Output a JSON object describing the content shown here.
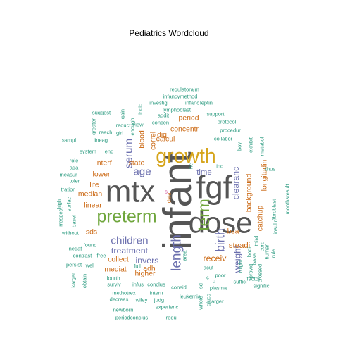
{
  "chart_data": {
    "type": "wordcloud",
    "title": "Pediatrics  Wordcloud",
    "colors": {
      "dark": "#555555",
      "gold": "#d6a51c",
      "green": "#6fa63c",
      "purple": "#6b6fae",
      "orange": "#cc6b17",
      "teal": "#2a9a7f",
      "pink": "#c9358a"
    },
    "words": [
      {
        "text": "infant",
        "weight": 60,
        "color": "dark",
        "rotate": true
      },
      {
        "text": "fgf",
        "weight": 48,
        "color": "dark",
        "rotate": false
      },
      {
        "text": "mtx",
        "weight": 46,
        "color": "dark",
        "rotate": false
      },
      {
        "text": "dose",
        "weight": 44,
        "color": "dark",
        "rotate": false
      },
      {
        "text": "growth",
        "weight": 30,
        "color": "gold",
        "rotate": false
      },
      {
        "text": "preterm",
        "weight": 26,
        "color": "green",
        "rotate": false
      },
      {
        "text": "term",
        "weight": 24,
        "color": "green",
        "rotate": true
      },
      {
        "text": "length",
        "weight": 20,
        "color": "purple",
        "rotate": true
      },
      {
        "text": "birth",
        "weight": 18,
        "color": "purple",
        "rotate": true
      },
      {
        "text": "children",
        "weight": 16,
        "color": "purple",
        "rotate": false
      },
      {
        "text": "serum",
        "weight": 16,
        "color": "purple",
        "rotate": true
      },
      {
        "text": "age",
        "weight": 16,
        "color": "purple",
        "rotate": false
      },
      {
        "text": "weight",
        "weight": 14,
        "color": "purple",
        "rotate": true
      },
      {
        "text": "treatment",
        "weight": 13,
        "color": "purple",
        "rotate": false
      },
      {
        "text": "invers",
        "weight": 13,
        "color": "purple",
        "rotate": false
      },
      {
        "text": "clearanc",
        "weight": 13,
        "color": "purple",
        "rotate": true
      },
      {
        "text": "time",
        "weight": 12,
        "color": "purple",
        "rotate": false
      },
      {
        "text": "receiv",
        "weight": 13,
        "color": "orange",
        "rotate": false
      },
      {
        "text": "steadi",
        "weight": 12,
        "color": "orange",
        "rotate": false
      },
      {
        "text": "longitudin",
        "weight": 11,
        "color": "orange",
        "rotate": true
      },
      {
        "text": "background",
        "weight": 11,
        "color": "orange",
        "rotate": true
      },
      {
        "text": "catchup",
        "weight": 11,
        "color": "orange",
        "rotate": true
      },
      {
        "text": "bsa",
        "weight": 11,
        "color": "orange",
        "rotate": false
      },
      {
        "text": "mediat",
        "weight": 11,
        "color": "orange",
        "rotate": false
      },
      {
        "text": "higher",
        "weight": 11,
        "color": "orange",
        "rotate": false
      },
      {
        "text": "collect",
        "weight": 11,
        "color": "orange",
        "rotate": false
      },
      {
        "text": "median",
        "weight": 11,
        "color": "orange",
        "rotate": false
      },
      {
        "text": "linear",
        "weight": 11,
        "color": "orange",
        "rotate": false
      },
      {
        "text": "lower",
        "weight": 11,
        "color": "orange",
        "rotate": false
      },
      {
        "text": "interf",
        "weight": 11,
        "color": "orange",
        "rotate": false
      },
      {
        "text": "state",
        "weight": 11,
        "color": "orange",
        "rotate": false
      },
      {
        "text": "life",
        "weight": 11,
        "color": "orange",
        "rotate": false
      },
      {
        "text": "sds",
        "weight": 11,
        "color": "orange",
        "rotate": false
      },
      {
        "text": "blood",
        "weight": 11,
        "color": "orange",
        "rotate": true
      },
      {
        "text": "correl",
        "weight": 11,
        "color": "orange",
        "rotate": true
      },
      {
        "text": "dig",
        "weight": 11,
        "color": "orange",
        "rotate": false
      },
      {
        "text": "calcul",
        "weight": 11,
        "color": "orange",
        "rotate": false
      },
      {
        "text": "concentr",
        "weight": 11,
        "color": "orange",
        "rotate": false
      },
      {
        "text": "period",
        "weight": 11,
        "color": "orange",
        "rotate": false
      },
      {
        "text": "adh",
        "weight": 11,
        "color": "orange",
        "rotate": false
      },
      {
        "text": "data",
        "weight": 9,
        "color": "orange",
        "rotate": true
      },
      {
        "text": "regulatoraim",
        "weight": 7,
        "color": "teal",
        "rotate": false
      },
      {
        "text": "infancymethod",
        "weight": 7,
        "color": "teal",
        "rotate": false
      },
      {
        "text": "investig",
        "weight": 7,
        "color": "teal",
        "rotate": false
      },
      {
        "text": "infanc",
        "weight": 7,
        "color": "teal",
        "rotate": false
      },
      {
        "text": "leptin",
        "weight": 7,
        "color": "teal",
        "rotate": false
      },
      {
        "text": "lymphoblast",
        "weight": 7,
        "color": "teal",
        "rotate": false
      },
      {
        "text": "indic",
        "weight": 7,
        "color": "teal",
        "rotate": true
      },
      {
        "text": "gain",
        "weight": 7,
        "color": "teal",
        "rotate": true
      },
      {
        "text": "suggest",
        "weight": 7,
        "color": "teal",
        "rotate": false
      },
      {
        "text": "addit",
        "weight": 7,
        "color": "teal",
        "rotate": false
      },
      {
        "text": "support",
        "weight": 7,
        "color": "teal",
        "rotate": false
      },
      {
        "text": "view",
        "weight": 7,
        "color": "teal",
        "rotate": false
      },
      {
        "text": "concen",
        "weight": 7,
        "color": "teal",
        "rotate": false
      },
      {
        "text": "protocol",
        "weight": 7,
        "color": "teal",
        "rotate": false
      },
      {
        "text": "procedur",
        "weight": 7,
        "color": "teal",
        "rotate": false
      },
      {
        "text": "greater",
        "weight": 7,
        "color": "teal",
        "rotate": true
      },
      {
        "text": "enough",
        "weight": 7,
        "color": "teal",
        "rotate": true
      },
      {
        "text": "reduct",
        "weight": 7,
        "color": "teal",
        "rotate": false
      },
      {
        "text": "girl",
        "weight": 7,
        "color": "teal",
        "rotate": false
      },
      {
        "text": "reach",
        "weight": 7,
        "color": "teal",
        "rotate": false
      },
      {
        "text": "sampl",
        "weight": 7,
        "color": "teal",
        "rotate": false
      },
      {
        "text": "lineag",
        "weight": 7,
        "color": "teal",
        "rotate": false
      },
      {
        "text": "collabor",
        "weight": 7,
        "color": "teal",
        "rotate": false
      },
      {
        "text": "boy",
        "weight": 7,
        "color": "teal",
        "rotate": true
      },
      {
        "text": "system",
        "weight": 7,
        "color": "teal",
        "rotate": false
      },
      {
        "text": "end",
        "weight": 7,
        "color": "teal",
        "rotate": false
      },
      {
        "text": "role",
        "weight": 7,
        "color": "teal",
        "rotate": false
      },
      {
        "text": "aga",
        "weight": 7,
        "color": "teal",
        "rotate": false
      },
      {
        "text": "measur",
        "weight": 7,
        "color": "teal",
        "rotate": false
      },
      {
        "text": "toler",
        "weight": 7,
        "color": "teal",
        "rotate": false
      },
      {
        "text": "tration",
        "weight": 7,
        "color": "teal",
        "rotate": false
      },
      {
        "text": "exhibit",
        "weight": 7,
        "color": "teal",
        "rotate": true
      },
      {
        "text": "metabol",
        "weight": 7,
        "color": "teal",
        "rotate": true
      },
      {
        "text": "inc",
        "weight": 7,
        "color": "teal",
        "rotate": false
      },
      {
        "text": "thus",
        "weight": 7,
        "color": "teal",
        "rotate": false
      },
      {
        "text": "fibroblast",
        "weight": 7,
        "color": "teal",
        "rotate": true
      },
      {
        "text": "monthsresult",
        "weight": 7,
        "color": "teal",
        "rotate": true
      },
      {
        "text": "insulin",
        "weight": 7,
        "color": "teal",
        "rotate": true
      },
      {
        "text": "irrespect",
        "weight": 7,
        "color": "teal",
        "rotate": true
      },
      {
        "text": "basel",
        "weight": 7,
        "color": "teal",
        "rotate": true
      },
      {
        "text": "surfac",
        "weight": 7,
        "color": "teal",
        "rotate": true
      },
      {
        "text": "high",
        "weight": 7,
        "color": "teal",
        "rotate": true
      },
      {
        "text": "without",
        "weight": 7,
        "color": "teal",
        "rotate": false
      },
      {
        "text": "found",
        "weight": 7,
        "color": "teal",
        "rotate": false
      },
      {
        "text": "negat",
        "weight": 7,
        "color": "teal",
        "rotate": false
      },
      {
        "text": "contrast",
        "weight": 7,
        "color": "teal",
        "rotate": false
      },
      {
        "text": "free",
        "weight": 7,
        "color": "teal",
        "rotate": false
      },
      {
        "text": "persist",
        "weight": 7,
        "color": "teal",
        "rotate": false
      },
      {
        "text": "well",
        "weight": 7,
        "color": "teal",
        "rotate": false
      },
      {
        "text": "karger",
        "weight": 7,
        "color": "teal",
        "rotate": true
      },
      {
        "text": "obtain",
        "weight": 7,
        "color": "teal",
        "rotate": true
      },
      {
        "text": "fourth",
        "weight": 7,
        "color": "teal",
        "rotate": false
      },
      {
        "text": "surviv",
        "weight": 7,
        "color": "teal",
        "rotate": false
      },
      {
        "text": "infus",
        "weight": 7,
        "color": "teal",
        "rotate": false
      },
      {
        "text": "conclus",
        "weight": 7,
        "color": "teal",
        "rotate": false
      },
      {
        "text": "full",
        "weight": 7,
        "color": "teal",
        "rotate": false
      },
      {
        "text": "methotrex",
        "weight": 7,
        "color": "teal",
        "rotate": false
      },
      {
        "text": "intern",
        "weight": 7,
        "color": "teal",
        "rotate": false
      },
      {
        "text": "decreas",
        "weight": 7,
        "color": "teal",
        "rotate": false
      },
      {
        "text": "wiley",
        "weight": 7,
        "color": "teal",
        "rotate": false
      },
      {
        "text": "judg",
        "weight": 7,
        "color": "teal",
        "rotate": false
      },
      {
        "text": "newborn",
        "weight": 7,
        "color": "teal",
        "rotate": false
      },
      {
        "text": "leukemia",
        "weight": 7,
        "color": "teal",
        "rotate": false
      },
      {
        "text": "experienc",
        "weight": 7,
        "color": "teal",
        "rotate": false
      },
      {
        "text": "periodconclus",
        "weight": 7,
        "color": "teal",
        "rotate": false
      },
      {
        "text": "regul",
        "weight": 7,
        "color": "teal",
        "rotate": false
      },
      {
        "text": "consid",
        "weight": 7,
        "color": "teal",
        "rotate": false
      },
      {
        "text": "plasma",
        "weight": 7,
        "color": "teal",
        "rotate": false
      },
      {
        "text": "larger",
        "weight": 7,
        "color": "teal",
        "rotate": false
      },
      {
        "text": "signific",
        "weight": 7,
        "color": "teal",
        "rotate": false
      },
      {
        "text": "factor",
        "weight": 7,
        "color": "teal",
        "rotate": false
      },
      {
        "text": "suffici",
        "weight": 7,
        "color": "teal",
        "rotate": false
      },
      {
        "text": "poor",
        "weight": 7,
        "color": "teal",
        "rotate": false
      },
      {
        "text": "acut",
        "weight": 7,
        "color": "teal",
        "rotate": false
      },
      {
        "text": "area",
        "weight": 7,
        "color": "teal",
        "rotate": true
      },
      {
        "text": "might",
        "weight": 7,
        "color": "teal",
        "rotate": true
      },
      {
        "text": "base",
        "weight": 7,
        "color": "teal",
        "rotate": true
      },
      {
        "text": "provid",
        "weight": 7,
        "color": "teal",
        "rotate": true
      },
      {
        "text": "bodi",
        "weight": 7,
        "color": "teal",
        "rotate": true
      },
      {
        "text": "third",
        "weight": 7,
        "color": "teal",
        "rotate": true
      },
      {
        "text": "cord",
        "weight": 7,
        "color": "teal",
        "rotate": true
      },
      {
        "text": "rule",
        "weight": 7,
        "color": "teal",
        "rotate": true
      },
      {
        "text": "crossed",
        "weight": 7,
        "color": "teal",
        "rotate": true
      },
      {
        "text": "human",
        "weight": 7,
        "color": "teal",
        "rotate": true
      },
      {
        "text": "whole",
        "weight": 7,
        "color": "teal",
        "rotate": true
      },
      {
        "text": "gluco",
        "weight": 7,
        "color": "teal",
        "rotate": true
      },
      {
        "text": "nc",
        "weight": 7,
        "color": "teal",
        "rotate": true
      },
      {
        "text": "sd",
        "weight": 7,
        "color": "teal",
        "rotate": true
      },
      {
        "text": "u",
        "weight": 7,
        "color": "teal",
        "rotate": false
      },
      {
        "text": "c",
        "weight": 7,
        "color": "teal",
        "rotate": false
      },
      {
        "text": "s",
        "weight": 7,
        "color": "pink",
        "rotate": false
      }
    ]
  }
}
